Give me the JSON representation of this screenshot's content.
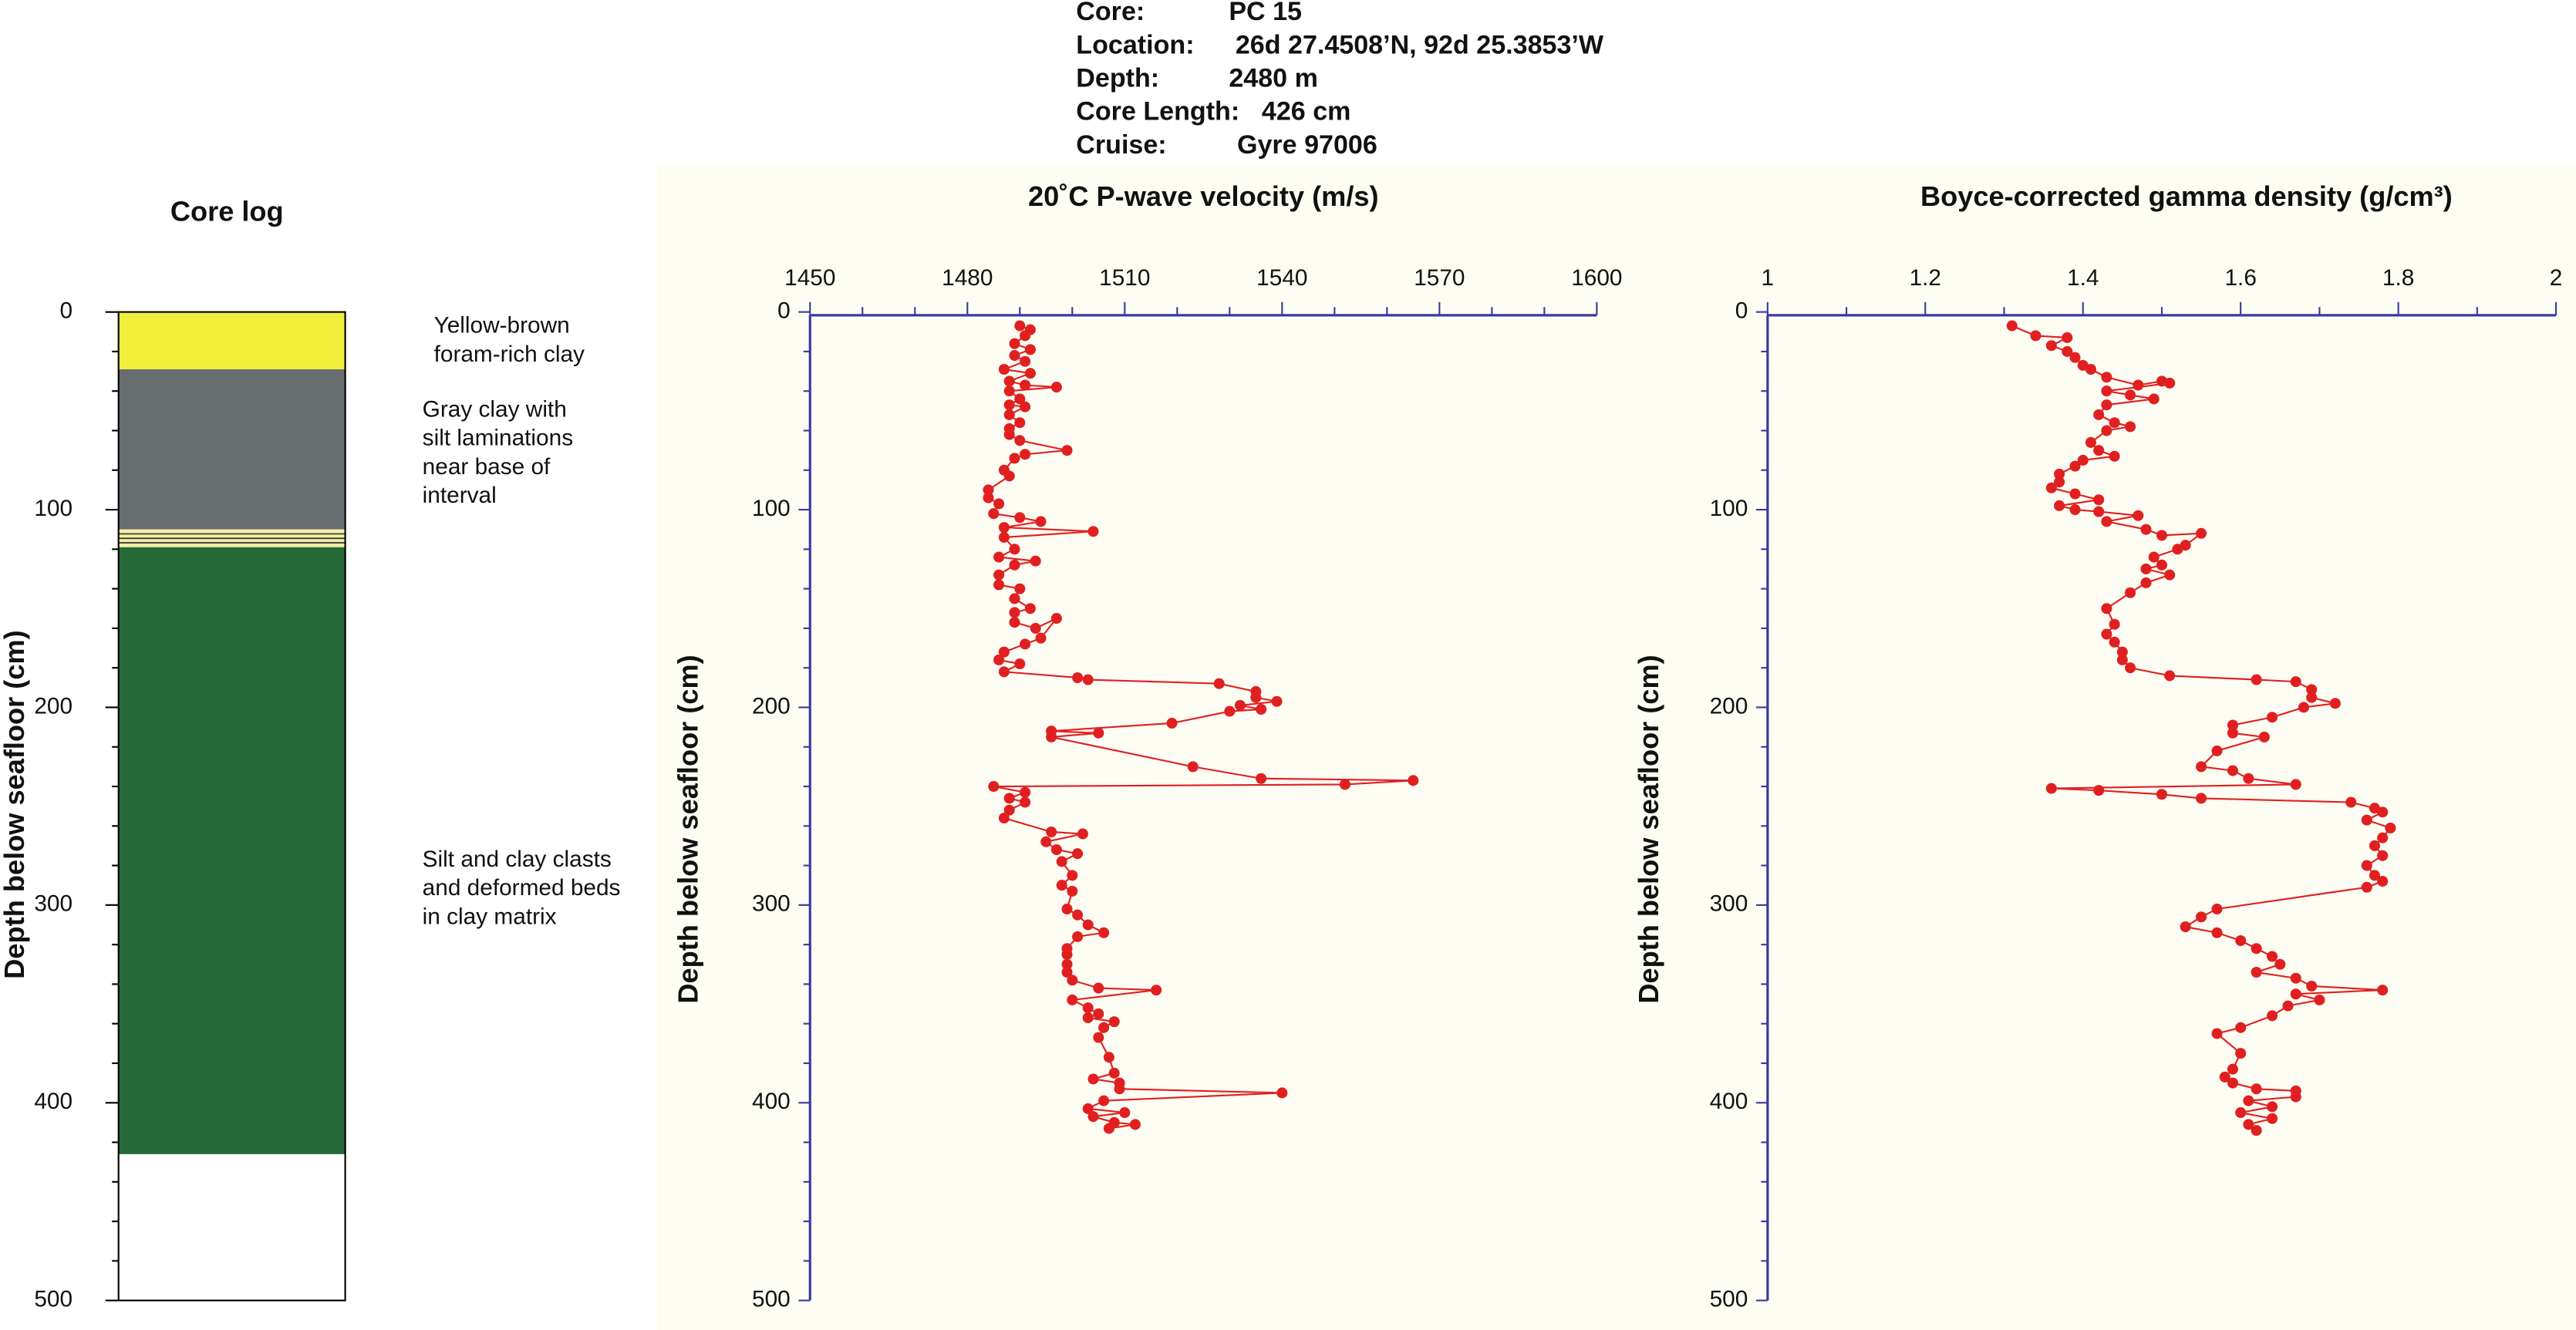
{
  "header": {
    "lines": [
      {
        "label": "Core:",
        "value": "PC 15"
      },
      {
        "label": "Location:",
        "value": "26d 27.4508’N, 92d 25.3853’W"
      },
      {
        "label": "Depth:",
        "value": "2480 m"
      },
      {
        "label": "Core Length:",
        "value": "426 cm"
      },
      {
        "label": "Cruise:",
        "value": "Gyre 97006"
      }
    ]
  },
  "chart_data": [
    {
      "type": "core-log",
      "title": "Core log",
      "y_label": "Depth below seafloor (cm)",
      "ylim": [
        0,
        500
      ],
      "yticks": [
        0,
        100,
        200,
        300,
        400,
        500
      ],
      "y_minor_divisions": 5,
      "layers": [
        {
          "top": 0,
          "bottom": 29,
          "color": "#f0ef3c"
        },
        {
          "top": 29,
          "bottom": 110,
          "color": "#686d70"
        },
        {
          "top": 110,
          "bottom": 119,
          "color": "#f3efa6"
        },
        {
          "top": 119,
          "bottom": 426,
          "color": "#266b37"
        }
      ],
      "annotations": [
        [
          "Yellow-brown",
          "foram-rich clay"
        ],
        [
          "Gray clay with",
          "silt laminations",
          "near base of",
          "interval"
        ],
        [
          "Silt and clay clasts",
          "and deformed beds",
          "in clay matrix"
        ]
      ]
    },
    {
      "type": "profile",
      "title": "20˚C P-wave velocity (m/s)",
      "y_label": "Depth below seafloor (cm)",
      "xlim": [
        1450,
        1600
      ],
      "xticks": [
        1450,
        1480,
        1510,
        1540,
        1570,
        1600
      ],
      "x_minor_divisions": 3,
      "ylim": [
        0,
        500
      ],
      "yticks": [
        0,
        100,
        200,
        300,
        400,
        500
      ],
      "y_minor_divisions": 5,
      "color": "#e02020",
      "values": [
        1490,
        1492,
        1491,
        1489,
        1492,
        1489,
        1491,
        1487,
        1492,
        1488,
        1491,
        1497,
        1488,
        1490,
        1488,
        1491,
        1488,
        1490,
        1488,
        1488,
        1490,
        1499,
        1491,
        1489,
        1487,
        1488,
        1484,
        1484,
        1486,
        1485,
        1490,
        1494,
        1487,
        1504,
        1487,
        1489,
        1486,
        1493,
        1489,
        1486,
        1486,
        1490,
        1489,
        1492,
        1489,
        1489,
        1493,
        1497,
        1494,
        1491,
        1487,
        1486,
        1490,
        1487,
        1501,
        1503,
        1528,
        1535,
        1535,
        1539,
        1532,
        1536,
        1530,
        1519,
        1496,
        1505,
        1496,
        1523,
        1536,
        1565,
        1552,
        1485,
        1491,
        1488,
        1491,
        1488,
        1487,
        1496,
        1502,
        1495,
        1497,
        1501,
        1498,
        1500,
        1498,
        1500,
        1499,
        1501,
        1503,
        1506,
        1501,
        1499,
        1499,
        1499,
        1499,
        1500,
        1505,
        1516,
        1500,
        1503,
        1505,
        1503,
        1508,
        1506,
        1505,
        1507,
        1508,
        1504,
        1509,
        1509,
        1540,
        1506,
        1503,
        1510,
        1504,
        1508,
        1512,
        1507
      ],
      "depth": [
        7,
        9,
        12,
        16,
        19,
        22,
        25,
        29,
        31,
        35,
        37,
        38,
        40,
        44,
        47,
        48,
        52,
        56,
        59,
        62,
        65,
        70,
        72,
        74,
        80,
        83,
        90,
        94,
        97,
        102,
        104,
        106,
        109,
        111,
        114,
        120,
        124,
        126,
        128,
        133,
        138,
        140,
        145,
        150,
        152,
        157,
        160,
        155,
        165,
        168,
        172,
        176,
        178,
        182,
        185,
        186,
        188,
        192,
        195,
        197,
        199,
        201,
        202,
        208,
        212,
        213,
        215,
        230,
        236,
        237,
        239,
        240,
        243,
        246,
        248,
        252,
        256,
        263,
        264,
        268,
        272,
        274,
        278,
        285,
        290,
        293,
        302,
        305,
        310,
        314,
        316,
        322,
        325,
        330,
        334,
        338,
        342,
        343,
        348,
        352,
        355,
        357,
        359,
        362,
        367,
        377,
        385,
        388,
        390,
        393,
        395,
        399,
        403,
        405,
        407,
        410,
        411,
        413
      ]
    },
    {
      "type": "profile",
      "title": "Boyce-corrected gamma density (g/cm³)",
      "y_label": "Depth below seafloor (cm)",
      "xlim": [
        1,
        2
      ],
      "xticks": [
        1,
        1.2,
        1.4,
        1.6,
        1.8,
        2
      ],
      "x_minor_divisions": 2,
      "ylim": [
        0,
        500
      ],
      "yticks": [
        0,
        100,
        200,
        300,
        400,
        500
      ],
      "y_minor_divisions": 5,
      "color": "#e02020",
      "values": [
        1.31,
        1.34,
        1.38,
        1.36,
        1.38,
        1.39,
        1.4,
        1.41,
        1.43,
        1.47,
        1.5,
        1.51,
        1.43,
        1.46,
        1.49,
        1.43,
        1.42,
        1.44,
        1.46,
        1.43,
        1.41,
        1.42,
        1.44,
        1.4,
        1.39,
        1.37,
        1.37,
        1.36,
        1.39,
        1.42,
        1.37,
        1.39,
        1.42,
        1.47,
        1.43,
        1.48,
        1.5,
        1.55,
        1.53,
        1.52,
        1.49,
        1.5,
        1.48,
        1.51,
        1.48,
        1.46,
        1.43,
        1.44,
        1.43,
        1.44,
        1.45,
        1.45,
        1.46,
        1.51,
        1.62,
        1.67,
        1.69,
        1.69,
        1.72,
        1.68,
        1.64,
        1.59,
        1.59,
        1.63,
        1.57,
        1.55,
        1.59,
        1.61,
        1.67,
        1.36,
        1.42,
        1.5,
        1.55,
        1.74,
        1.77,
        1.78,
        1.76,
        1.79,
        1.78,
        1.77,
        1.78,
        1.76,
        1.77,
        1.78,
        1.76,
        1.57,
        1.55,
        1.53,
        1.57,
        1.6,
        1.62,
        1.64,
        1.65,
        1.62,
        1.67,
        1.69,
        1.78,
        1.67,
        1.7,
        1.66,
        1.64,
        1.6,
        1.57,
        1.6,
        1.59,
        1.58,
        1.59,
        1.62,
        1.67,
        1.67,
        1.61,
        1.64,
        1.6,
        1.64,
        1.61,
        1.62
      ],
      "depth": [
        7,
        12,
        13,
        17,
        20,
        23,
        27,
        29,
        33,
        37,
        35,
        36,
        40,
        42,
        44,
        47,
        52,
        56,
        58,
        60,
        66,
        70,
        73,
        75,
        78,
        82,
        86,
        89,
        92,
        95,
        98,
        100,
        101,
        103,
        106,
        110,
        113,
        112,
        118,
        120,
        124,
        128,
        130,
        133,
        137,
        142,
        150,
        158,
        163,
        167,
        172,
        176,
        180,
        184,
        186,
        187,
        191,
        195,
        198,
        200,
        205,
        209,
        213,
        215,
        222,
        230,
        232,
        236,
        239,
        241,
        242,
        244,
        246,
        248,
        251,
        253,
        257,
        261,
        266,
        270,
        275,
        280,
        285,
        288,
        291,
        302,
        306,
        311,
        314,
        318,
        322,
        326,
        330,
        334,
        337,
        341,
        343,
        345,
        348,
        351,
        356,
        362,
        365,
        375,
        383,
        387,
        390,
        393,
        394,
        397,
        399,
        402,
        405,
        408,
        411,
        414
      ]
    }
  ]
}
